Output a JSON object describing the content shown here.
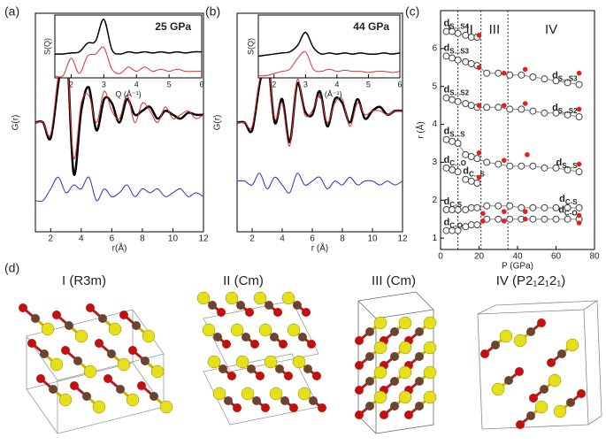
{
  "chart_data": [
    {
      "type": "line",
      "panel": "(a)",
      "ylabel": "G(r)",
      "xlabel": "r(Å)",
      "xlim": [
        1,
        12
      ],
      "xticks": [
        2,
        4,
        6,
        8,
        10,
        12
      ],
      "ylim": [
        -2.8,
        2.8
      ],
      "x": [
        1,
        1.5,
        2,
        2.5,
        3,
        3.5,
        4,
        4.5,
        5,
        5.5,
        6,
        6.5,
        7,
        7.5,
        8,
        8.5,
        9,
        9.5,
        10,
        10.5,
        11,
        11.5,
        12
      ],
      "series": [
        {
          "color": "#000000",
          "width": 2.5,
          "values": [
            0,
            0,
            -0.4,
            1.0,
            2.2,
            -1.3,
            0.3,
            0.9,
            -0.2,
            0.6,
            0.5,
            0.0,
            0.6,
            0.2,
            0.3,
            0.4,
            0.1,
            0.3,
            0.2,
            0.1,
            0.25,
            0.2,
            0.2
          ]
        },
        {
          "color": "#e03030",
          "width": 1,
          "values": [
            0,
            0,
            -0.3,
            1.2,
            2.0,
            -0.9,
            0.5,
            0.7,
            0.0,
            0.8,
            0.3,
            0.1,
            0.7,
            0.0,
            0.5,
            0.3,
            0.0,
            0.4,
            0.1,
            0.2,
            0.3,
            0.1,
            0.2
          ]
        },
        {
          "color": "#2a2ad0",
          "width": 1,
          "values": [
            -2.0,
            -2.0,
            -1.7,
            -1.4,
            -1.8,
            -1.6,
            -1.7,
            -1.4,
            -2.0,
            -1.7,
            -1.9,
            -1.8,
            -1.6,
            -1.9,
            -1.7,
            -1.8,
            -1.7,
            -1.9,
            -1.8,
            -1.7,
            -1.9,
            -1.8,
            -1.9
          ]
        }
      ]
    },
    {
      "type": "line",
      "annotation": "25 GPa",
      "ylabel": "S(Q)",
      "xlabel": "Q (Å⁻¹)",
      "xlim": [
        1.5,
        6
      ],
      "xticks": [
        2,
        3,
        4,
        5,
        6
      ],
      "ylim": [
        -0.1,
        2.8
      ],
      "x": [
        1.5,
        1.75,
        2,
        2.25,
        2.5,
        2.75,
        3,
        3.25,
        3.5,
        3.75,
        4,
        4.25,
        4.5,
        4.75,
        5,
        5.25,
        5.5,
        5.75,
        6
      ],
      "series": [
        {
          "color": "#000000",
          "width": 1.5,
          "values": [
            1.0,
            1.0,
            1.05,
            1.1,
            1.5,
            1.6,
            2.6,
            1.2,
            1.0,
            1.1,
            1.05,
            1.1,
            1.05,
            1.1,
            1.05,
            1.1,
            1.05,
            1.1,
            1.1
          ]
        },
        {
          "color": "#e03030",
          "width": 1,
          "values": [
            0,
            0,
            0.8,
            0.1,
            0.9,
            1.0,
            1.3,
            0.3,
            0.1,
            0.4,
            0.2,
            0.4,
            0.2,
            0.3,
            0.2,
            0.3,
            0.2,
            0.2,
            0.2
          ]
        }
      ]
    },
    {
      "type": "line",
      "panel": "(b)",
      "ylabel": "G(r)",
      "xlabel": "r (Å)",
      "xlim": [
        1,
        12
      ],
      "xticks": [
        2,
        4,
        6,
        8,
        10,
        12
      ],
      "ylim": [
        -2.8,
        2.8
      ],
      "x": [
        1,
        1.5,
        2,
        2.5,
        3,
        3.5,
        4,
        4.5,
        5,
        5.5,
        6,
        6.5,
        7,
        7.5,
        8,
        8.5,
        9,
        9.5,
        10,
        10.5,
        11,
        11.5,
        12
      ],
      "series": [
        {
          "color": "#000000",
          "width": 2.5,
          "values": [
            0,
            0,
            -0.2,
            1.0,
            1.7,
            0.0,
            0.6,
            -0.5,
            1.0,
            0.3,
            0.2,
            0.8,
            -0.1,
            0.6,
            0.5,
            0.0,
            0.6,
            0.1,
            0.3,
            0.4,
            0.2,
            0.3,
            0.3
          ]
        },
        {
          "color": "#e03030",
          "width": 1,
          "values": [
            0,
            0,
            -0.1,
            1.1,
            1.6,
            0.1,
            0.5,
            -0.6,
            1.1,
            0.2,
            0.3,
            0.7,
            0.0,
            0.5,
            0.6,
            -0.1,
            0.5,
            0.2,
            0.3,
            0.3,
            0.2,
            0.3,
            0.3
          ]
        },
        {
          "color": "#2a2ad0",
          "width": 1,
          "values": [
            -1.5,
            -1.5,
            -1.6,
            -1.3,
            -1.7,
            -1.4,
            -1.6,
            -1.8,
            -1.3,
            -1.6,
            -1.5,
            -1.4,
            -1.7,
            -1.5,
            -1.6,
            -1.4,
            -1.6,
            -1.5,
            -1.5,
            -1.6,
            -1.5,
            -1.6,
            -1.5
          ]
        }
      ]
    },
    {
      "type": "line",
      "annotation": "44 GPa",
      "ylabel": "S(Q)",
      "xlabel": "Q (Å⁻¹)",
      "xlim": [
        1.5,
        6
      ],
      "xticks": [
        2,
        3,
        4,
        5,
        6
      ],
      "ylim": [
        -0.1,
        2.8
      ],
      "x": [
        1.5,
        1.75,
        2,
        2.25,
        2.5,
        2.75,
        3,
        3.25,
        3.5,
        3.75,
        4,
        4.25,
        4.5,
        4.75,
        5,
        5.25,
        5.5,
        5.75,
        6
      ],
      "series": [
        {
          "color": "#000000",
          "width": 1.5,
          "values": [
            0.9,
            0.95,
            1.0,
            1.05,
            1.1,
            1.4,
            2.0,
            1.3,
            1.0,
            1.05,
            1.0,
            1.05,
            1.0,
            1.05,
            1.0,
            1.0,
            1.05,
            1.0,
            1.05
          ]
        },
        {
          "color": "#e03030",
          "width": 1,
          "values": [
            0,
            0,
            0.1,
            0.2,
            0.3,
            0.8,
            1.1,
            0.3,
            0.2,
            0.3,
            0.2,
            0.25,
            0.2,
            0.2,
            0.15,
            0.2,
            0.2,
            0.15,
            0.2
          ]
        }
      ]
    },
    {
      "type": "scatter",
      "panel": "(c)",
      "ylabel": "r (Å)",
      "xlabel": "P (GPa)",
      "xlim": [
        0,
        80
      ],
      "xticks": [
        0,
        20,
        40,
        60,
        80
      ],
      "ylim": [
        0.7,
        7
      ],
      "yticks": [
        1,
        2,
        3,
        4,
        5,
        6
      ],
      "phase_boundaries": [
        9,
        21,
        35
      ],
      "phase_labels": [
        "I",
        "II",
        "III",
        "IV"
      ],
      "series": [
        {
          "name": "d",
          "subscript": "S...S4",
          "color": "#444444",
          "marker": "open",
          "x": [
            3,
            6,
            9,
            13,
            16,
            19
          ],
          "values": [
            6.45,
            6.45,
            6.4,
            6.35,
            6.3,
            6.3
          ]
        },
        {
          "name": "d",
          "subscript": "S...S3",
          "color": "#444444",
          "marker": "open",
          "x": [
            3,
            6,
            9,
            13,
            16,
            19,
            24,
            30,
            36,
            42,
            48,
            54,
            60,
            66,
            72
          ],
          "values": [
            5.8,
            5.75,
            5.7,
            5.65,
            5.6,
            5.55,
            5.35,
            5.35,
            5.3,
            5.3,
            5.25,
            5.2,
            5.15,
            5.1,
            5.05
          ]
        },
        {
          "name": "d",
          "subscript": "S...S2",
          "color": "#444444",
          "marker": "open",
          "x": [
            3,
            6,
            9,
            13,
            16,
            19,
            24,
            30,
            36,
            42,
            48,
            54,
            60,
            66,
            72
          ],
          "values": [
            4.7,
            4.65,
            4.6,
            4.55,
            4.5,
            4.45,
            4.45,
            4.45,
            4.4,
            4.4,
            4.35,
            4.3,
            4.3,
            4.25,
            4.2
          ]
        },
        {
          "name": "d",
          "subscript": "S...S",
          "color": "#444444",
          "marker": "open",
          "x": [
            3,
            6,
            9,
            13,
            16,
            19,
            24,
            30,
            36,
            42,
            48,
            54,
            60,
            66,
            72
          ],
          "values": [
            3.6,
            3.55,
            3.5,
            3.2,
            3.15,
            3.1,
            3.0,
            2.95,
            2.9,
            2.9,
            2.9,
            2.85,
            2.85,
            2.8,
            2.75
          ]
        },
        {
          "name": "d",
          "subscript": "C...O",
          "color": "#444444",
          "marker": "open",
          "x": [
            3,
            6,
            9
          ],
          "values": [
            2.85,
            2.8,
            2.75
          ]
        },
        {
          "name": "d",
          "subscript": "C...S",
          "color": "#444444",
          "marker": "open",
          "x": [
            13,
            16,
            19
          ],
          "values": [
            2.55,
            2.5,
            2.45
          ]
        },
        {
          "name": "d",
          "subscript": "C-S",
          "color": "#444444",
          "marker": "open",
          "x": [
            3,
            6,
            9,
            13,
            16,
            19,
            24,
            30,
            36,
            42,
            48,
            54,
            60,
            66,
            72
          ],
          "values": [
            1.75,
            1.75,
            1.75,
            1.75,
            1.8,
            1.8,
            1.85,
            1.85,
            1.85,
            1.8,
            1.8,
            1.8,
            1.8,
            1.8,
            1.8
          ]
        },
        {
          "name": "d",
          "subscript": "C-O",
          "color": "#444444",
          "marker": "open",
          "x": [
            3,
            6,
            9,
            13,
            16,
            19,
            24,
            30,
            36,
            42,
            48,
            54,
            60,
            66,
            72
          ],
          "values": [
            1.2,
            1.2,
            1.2,
            1.3,
            1.35,
            1.35,
            1.5,
            1.5,
            1.5,
            1.5,
            1.5,
            1.5,
            1.5,
            1.5,
            1.5
          ]
        },
        {
          "color": "#e02020",
          "marker": "filled",
          "x": [
            20,
            20,
            20,
            20,
            20,
            22,
            22,
            33,
            33,
            33,
            33,
            33,
            44,
            44,
            45,
            44,
            44,
            72,
            72,
            72,
            72,
            72
          ],
          "values": [
            6.35,
            5.5,
            4.5,
            3.25,
            2.6,
            1.65,
            1.45,
            5.35,
            4.5,
            3.05,
            1.7,
            1.45,
            5.45,
            4.55,
            3.2,
            1.7,
            1.5,
            5.35,
            4.4,
            2.95,
            1.6,
            1.4
          ]
        }
      ]
    }
  ],
  "structures": {
    "panel": "(d)",
    "titles": [
      "I (R3m)",
      "II (Cm)",
      "III (Cm)",
      "IV (P2₁2₁2₁)"
    ]
  }
}
